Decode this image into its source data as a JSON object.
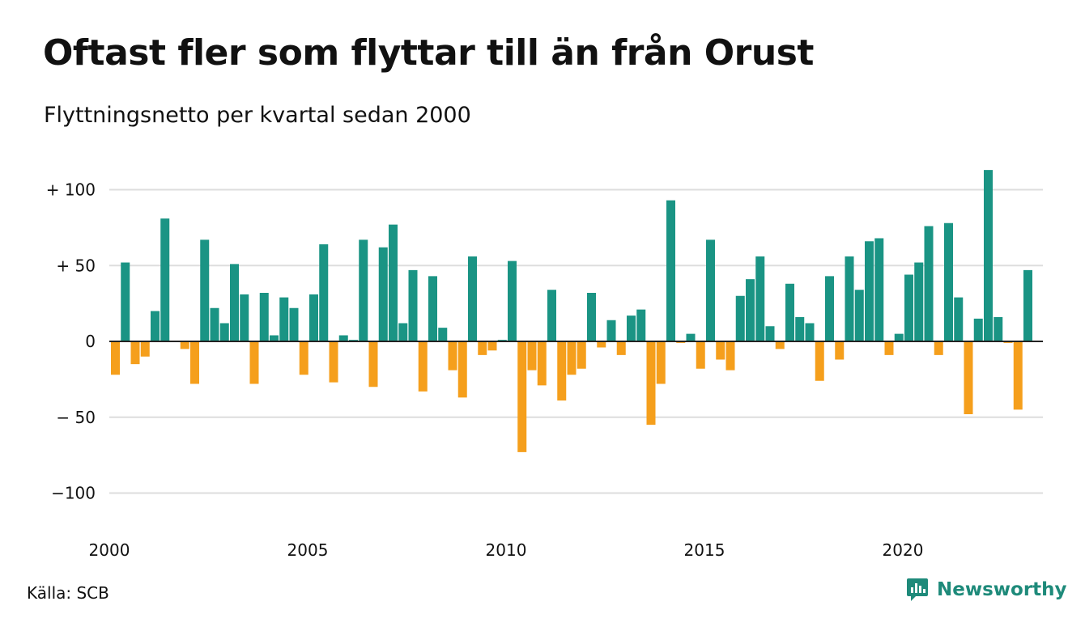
{
  "title": "Oftast fler som flyttar till än från Orust",
  "subtitle": "Flyttningsnetto per kvartal sedan 2000",
  "source": "Källa: SCB",
  "brand": {
    "name": "Newsworthy",
    "icon": "chart-bubble-icon",
    "color": "#1e8a7a"
  },
  "colors": {
    "positive": "#1a9484",
    "negative": "#f59f1c",
    "grid": "#dddddd",
    "zero_line": "#222222"
  },
  "chart_data": {
    "type": "bar",
    "title": "Oftast fler som flyttar till än från Orust",
    "subtitle": "Flyttningsnetto per kvartal sedan 2000",
    "xlabel": "",
    "ylabel": "",
    "ylim": [
      -125,
      125
    ],
    "grid": true,
    "y_ticks": [
      {
        "value": 100,
        "label": "+ 100"
      },
      {
        "value": 50,
        "label": "+  50"
      },
      {
        "value": 0,
        "label": "0"
      },
      {
        "value": -50,
        "label": "− 50"
      },
      {
        "value": -100,
        "label": "−100"
      }
    ],
    "x_ticks": [
      {
        "year": 2000,
        "label": "2000"
      },
      {
        "year": 2005,
        "label": "2005"
      },
      {
        "year": 2010,
        "label": "2010"
      },
      {
        "year": 2015,
        "label": "2015"
      },
      {
        "year": 2020,
        "label": "2020"
      }
    ],
    "start_year": 2000,
    "categories": [
      "2000 K1",
      "2000 K2",
      "2000 K3",
      "2000 K4",
      "2001 K1",
      "2001 K2",
      "2001 K3",
      "2001 K4",
      "2002 K1",
      "2002 K2",
      "2002 K3",
      "2002 K4",
      "2003 K1",
      "2003 K2",
      "2003 K3",
      "2003 K4",
      "2004 K1",
      "2004 K2",
      "2004 K3",
      "2004 K4",
      "2005 K1",
      "2005 K2",
      "2005 K3",
      "2005 K4",
      "2006 K1",
      "2006 K2",
      "2006 K3",
      "2006 K4",
      "2007 K1",
      "2007 K2",
      "2007 K3",
      "2007 K4",
      "2008 K1",
      "2008 K2",
      "2008 K3",
      "2008 K4",
      "2009 K1",
      "2009 K2",
      "2009 K3",
      "2009 K4",
      "2010 K1",
      "2010 K2",
      "2010 K3",
      "2010 K4",
      "2011 K1",
      "2011 K2",
      "2011 K3",
      "2011 K4",
      "2012 K1",
      "2012 K2",
      "2012 K3",
      "2012 K4",
      "2013 K1",
      "2013 K2",
      "2013 K3",
      "2013 K4",
      "2014 K1",
      "2014 K2",
      "2014 K3",
      "2014 K4",
      "2015 K1",
      "2015 K2",
      "2015 K3",
      "2015 K4",
      "2016 K1",
      "2016 K2",
      "2016 K3",
      "2016 K4",
      "2017 K1",
      "2017 K2",
      "2017 K3",
      "2017 K4",
      "2018 K1",
      "2018 K2",
      "2018 K3",
      "2018 K4",
      "2019 K1",
      "2019 K2",
      "2019 K3",
      "2019 K4",
      "2020 K1",
      "2020 K2",
      "2020 K3",
      "2020 K4",
      "2021 K1",
      "2021 K2",
      "2021 K3",
      "2021 K4",
      "2022 K1",
      "2022 K2",
      "2022 K3",
      "2022 K4",
      "2023 K1",
      "2023 K2",
      "2023 K3",
      "2023 K4"
    ],
    "values": [
      -22,
      52,
      -15,
      -10,
      20,
      81,
      0,
      -5,
      -28,
      67,
      22,
      12,
      51,
      31,
      -28,
      32,
      4,
      29,
      22,
      -22,
      31,
      64,
      -27,
      4,
      1,
      67,
      -30,
      62,
      77,
      12,
      47,
      -33,
      43,
      9,
      -19,
      -37,
      56,
      -9,
      -6,
      1,
      53,
      -73,
      -19,
      -29,
      34,
      -39,
      -22,
      -18,
      32,
      -4,
      14,
      -9,
      17,
      21,
      -55,
      -28,
      93,
      -1,
      5,
      -18,
      67,
      -12,
      -19,
      30,
      41,
      56,
      10,
      -5,
      38,
      16,
      12,
      -26,
      43,
      -12,
      56,
      34,
      66,
      68,
      -9,
      5,
      44,
      52,
      76,
      -9,
      78,
      29,
      -48,
      15,
      113,
      16,
      -1,
      -45,
      47,
      null,
      null,
      null
    ]
  }
}
